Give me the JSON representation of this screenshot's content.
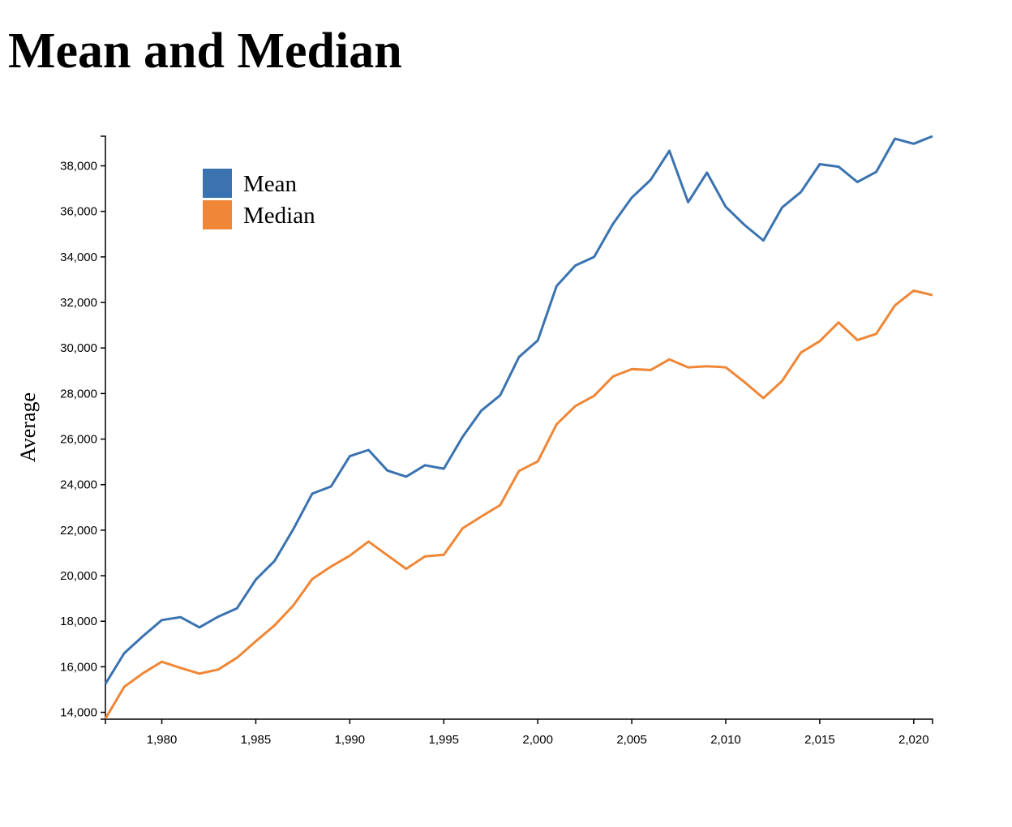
{
  "page": {
    "title": "Mean and Median"
  },
  "chart_data": {
    "type": "line",
    "title": "Mean and Median",
    "xlabel": "",
    "ylabel": "Average",
    "xlim": [
      1977,
      2021
    ],
    "ylim": [
      13700,
      39300
    ],
    "x_ticks": [
      "1,980",
      "1,985",
      "1,990",
      "1,995",
      "2,000",
      "2,005",
      "2,010",
      "2,015",
      "2,020"
    ],
    "x_tick_values": [
      1980,
      1985,
      1990,
      1995,
      2000,
      2005,
      2010,
      2015,
      2020
    ],
    "y_ticks": [
      "14,000",
      "16,000",
      "18,000",
      "20,000",
      "22,000",
      "24,000",
      "26,000",
      "28,000",
      "30,000",
      "32,000",
      "34,000",
      "36,000",
      "38,000"
    ],
    "y_tick_values": [
      14000,
      16000,
      18000,
      20000,
      22000,
      24000,
      26000,
      28000,
      30000,
      32000,
      34000,
      36000,
      38000
    ],
    "grid": false,
    "legend_position": "top-left",
    "x": [
      1977,
      1978,
      1979,
      1980,
      1981,
      1982,
      1983,
      1984,
      1985,
      1986,
      1987,
      1988,
      1989,
      1990,
      1991,
      1992,
      1993,
      1994,
      1995,
      1996,
      1997,
      1998,
      1999,
      2000,
      2001,
      2002,
      2003,
      2004,
      2005,
      2006,
      2007,
      2008,
      2009,
      2010,
      2011,
      2012,
      2013,
      2014,
      2015,
      2016,
      2017,
      2018,
      2019,
      2020,
      2021
    ],
    "series": [
      {
        "name": "Mean",
        "color": "#3a73b0",
        "values": [
          15250,
          16600,
          17350,
          18050,
          18180,
          17730,
          18200,
          18570,
          19830,
          20650,
          22050,
          23600,
          23920,
          25250,
          25520,
          24620,
          24350,
          24850,
          24700,
          26100,
          27250,
          27920,
          29600,
          30330,
          32720,
          33620,
          34000,
          35450,
          36600,
          37380,
          38660,
          36400,
          37700,
          36200,
          35400,
          34720,
          36170,
          36850,
          38070,
          37960,
          37290,
          37730,
          39190,
          38970,
          39300
        ]
      },
      {
        "name": "Median",
        "color": "#ef8737",
        "values": [
          13720,
          15120,
          15720,
          16220,
          15950,
          15700,
          15880,
          16400,
          17120,
          17820,
          18700,
          19850,
          20400,
          20880,
          21500,
          20900,
          20300,
          20850,
          20920,
          22080,
          22600,
          23100,
          24600,
          25020,
          26650,
          27450,
          27900,
          28750,
          29070,
          29030,
          29500,
          29150,
          29200,
          29150,
          28500,
          27800,
          28550,
          29800,
          30300,
          31120,
          30350,
          30620,
          31870,
          32520,
          32320
        ]
      }
    ]
  }
}
